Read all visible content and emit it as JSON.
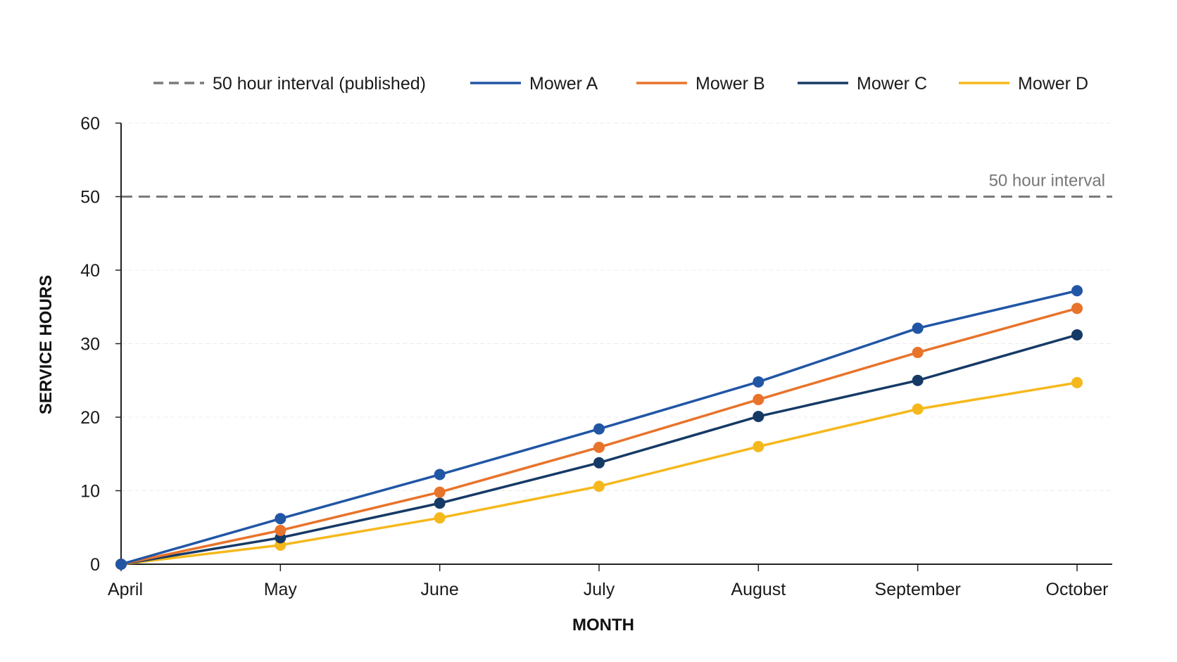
{
  "chart_data": {
    "type": "line",
    "title": "",
    "xlabel": "MONTH",
    "ylabel": "SERVICE HOURS",
    "categories": [
      "April",
      "May",
      "June",
      "July",
      "August",
      "September",
      "October"
    ],
    "ylim": [
      0,
      60
    ],
    "yticks": [
      0,
      10,
      20,
      30,
      40,
      50,
      60
    ],
    "grid": true,
    "legend_position": "top",
    "reference_line": {
      "value": 50,
      "label": "50 hour interval",
      "legend_label": "50 hour interval (published)",
      "color": "#7a7a7a",
      "style": "dashed"
    },
    "series": [
      {
        "name": "Mower A",
        "color": "#2156a5",
        "values": [
          0,
          6.2,
          12.2,
          18.4,
          24.8,
          32.1,
          37.2
        ]
      },
      {
        "name": "Mower B",
        "color": "#e8732a",
        "values": [
          0,
          4.6,
          9.8,
          15.9,
          22.4,
          28.8,
          34.8
        ]
      },
      {
        "name": "Mower C",
        "color": "#163a66",
        "values": [
          0,
          3.6,
          8.3,
          13.8,
          20.1,
          25.0,
          31.2
        ]
      },
      {
        "name": "Mower D",
        "color": "#f5b81c",
        "values": [
          0,
          2.6,
          6.3,
          10.6,
          16.0,
          21.1,
          24.7
        ]
      }
    ]
  }
}
